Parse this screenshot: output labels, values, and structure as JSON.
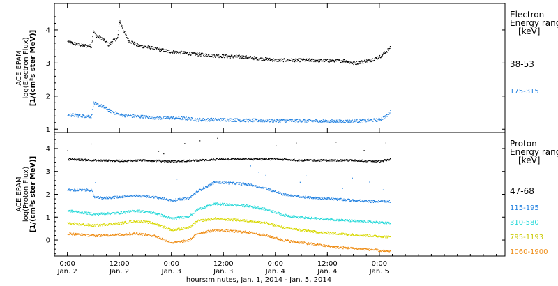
{
  "chart_data": [
    {
      "type": "scatter",
      "panel": "electron",
      "ylabel": [
        "ACE EPAM",
        "log(Electron Flux)",
        "[1/(cm²s ster MeV)]"
      ],
      "ylim": [
        0.9,
        4.8
      ],
      "yticks": [
        1,
        2,
        3,
        4
      ],
      "legend": {
        "title": [
          "Electron",
          "Energy ranges",
          "[keV]"
        ],
        "placement": "right"
      },
      "series": [
        {
          "name": "38-53",
          "color": "#000000",
          "x": [
            0,
            3,
            5.5,
            5.9,
            6.5,
            8,
            9.5,
            10.5,
            11.5,
            12,
            13,
            14,
            16,
            18,
            20,
            22,
            24,
            28,
            32,
            36,
            40,
            44,
            48,
            52,
            56,
            60,
            64,
            66,
            68,
            70,
            72,
            73.5,
            74.5
          ],
          "y": [
            3.65,
            3.55,
            3.52,
            4.0,
            3.85,
            3.75,
            3.55,
            3.7,
            3.75,
            4.3,
            3.95,
            3.7,
            3.55,
            3.5,
            3.45,
            3.4,
            3.35,
            3.3,
            3.25,
            3.22,
            3.2,
            3.15,
            3.1,
            3.1,
            3.1,
            3.08,
            3.08,
            3.0,
            3.05,
            3.1,
            3.2,
            3.35,
            3.5
          ]
        },
        {
          "name": "175-315",
          "color": "#1f7fdf",
          "x": [
            0,
            3,
            5.5,
            5.9,
            8,
            10,
            12,
            14,
            18,
            22,
            26,
            30,
            36,
            42,
            48,
            54,
            60,
            66,
            70,
            72,
            73.5,
            74.5
          ],
          "y": [
            1.45,
            1.42,
            1.4,
            1.8,
            1.7,
            1.55,
            1.45,
            1.42,
            1.38,
            1.35,
            1.35,
            1.3,
            1.3,
            1.28,
            1.27,
            1.27,
            1.25,
            1.25,
            1.28,
            1.3,
            1.4,
            1.55
          ]
        }
      ]
    },
    {
      "type": "scatter",
      "panel": "proton",
      "ylabel": [
        "ACE EPAM",
        "log(Proton Flux)",
        "[1/(cm²s ster MeV)]"
      ],
      "ylim": [
        -0.7,
        4.7
      ],
      "yticks": [
        0,
        1,
        2,
        3,
        4
      ],
      "legend": {
        "title": [
          "Proton",
          "Energy ranges",
          "[keV]"
        ],
        "placement": "right"
      },
      "series": [
        {
          "name": "47-68",
          "color": "#000000",
          "x": [
            0,
            6,
            12,
            18,
            24,
            30,
            36,
            42,
            48,
            54,
            60,
            66,
            72,
            74.5
          ],
          "y": [
            3.55,
            3.5,
            3.48,
            3.5,
            3.45,
            3.5,
            3.55,
            3.55,
            3.55,
            3.5,
            3.5,
            3.5,
            3.45,
            3.55
          ]
        },
        {
          "name": "115-195",
          "color": "#1f7fdf",
          "x": [
            0,
            5.5,
            6,
            8,
            12,
            16,
            20,
            24,
            28,
            30,
            34,
            38,
            42,
            46,
            50,
            54,
            58,
            62,
            66,
            70,
            74.5
          ],
          "y": [
            2.2,
            2.2,
            1.9,
            1.85,
            1.9,
            1.95,
            1.9,
            1.75,
            1.85,
            2.15,
            2.55,
            2.5,
            2.45,
            2.25,
            2.0,
            1.9,
            1.85,
            1.8,
            1.75,
            1.7,
            1.7
          ]
        },
        {
          "name": "310-580",
          "color": "#22d8d8",
          "x": [
            0,
            6,
            12,
            16,
            20,
            24,
            28,
            30,
            34,
            38,
            42,
            46,
            50,
            54,
            58,
            62,
            66,
            70,
            74.5
          ],
          "y": [
            1.3,
            1.15,
            1.2,
            1.3,
            1.2,
            0.95,
            1.05,
            1.35,
            1.6,
            1.55,
            1.5,
            1.35,
            1.1,
            1.0,
            0.95,
            0.9,
            0.85,
            0.8,
            0.75
          ]
        },
        {
          "name": "795-1193",
          "color": "#d8d800",
          "x": [
            0,
            6,
            12,
            16,
            20,
            24,
            28,
            30,
            34,
            38,
            42,
            46,
            50,
            54,
            58,
            62,
            66,
            70,
            74.5
          ],
          "y": [
            0.75,
            0.65,
            0.75,
            0.85,
            0.75,
            0.45,
            0.55,
            0.85,
            0.95,
            0.9,
            0.85,
            0.75,
            0.55,
            0.45,
            0.35,
            0.3,
            0.25,
            0.2,
            0.15
          ]
        },
        {
          "name": "1060-1900",
          "color": "#ee8a10",
          "x": [
            0,
            6,
            12,
            16,
            20,
            24,
            28,
            30,
            34,
            38,
            42,
            46,
            50,
            54,
            58,
            62,
            66,
            70,
            74.5
          ],
          "y": [
            0.3,
            0.2,
            0.25,
            0.3,
            0.2,
            -0.1,
            0.0,
            0.3,
            0.45,
            0.4,
            0.35,
            0.2,
            0.0,
            -0.1,
            -0.2,
            -0.3,
            -0.35,
            -0.4,
            -0.5
          ]
        }
      ]
    }
  ],
  "x_axis": {
    "range": [
      -3,
      101
    ],
    "ticks": [
      {
        "h": 0,
        "time": "0:00",
        "date": "Jan. 2"
      },
      {
        "h": 12,
        "time": "12:00",
        "date": "Jan. 2"
      },
      {
        "h": 24,
        "time": "0:00",
        "date": "Jan. 3"
      },
      {
        "h": 36,
        "time": "12:00",
        "date": "Jan. 3"
      },
      {
        "h": 48,
        "time": "0:00",
        "date": "Jan. 4"
      },
      {
        "h": 60,
        "time": "12:00",
        "date": "Jan. 4"
      },
      {
        "h": 72,
        "time": "0:00",
        "date": "Jan. 5"
      }
    ],
    "xlabel": "hours:minutes, Jan.  1, 2014 - Jan.  5, 2014"
  }
}
